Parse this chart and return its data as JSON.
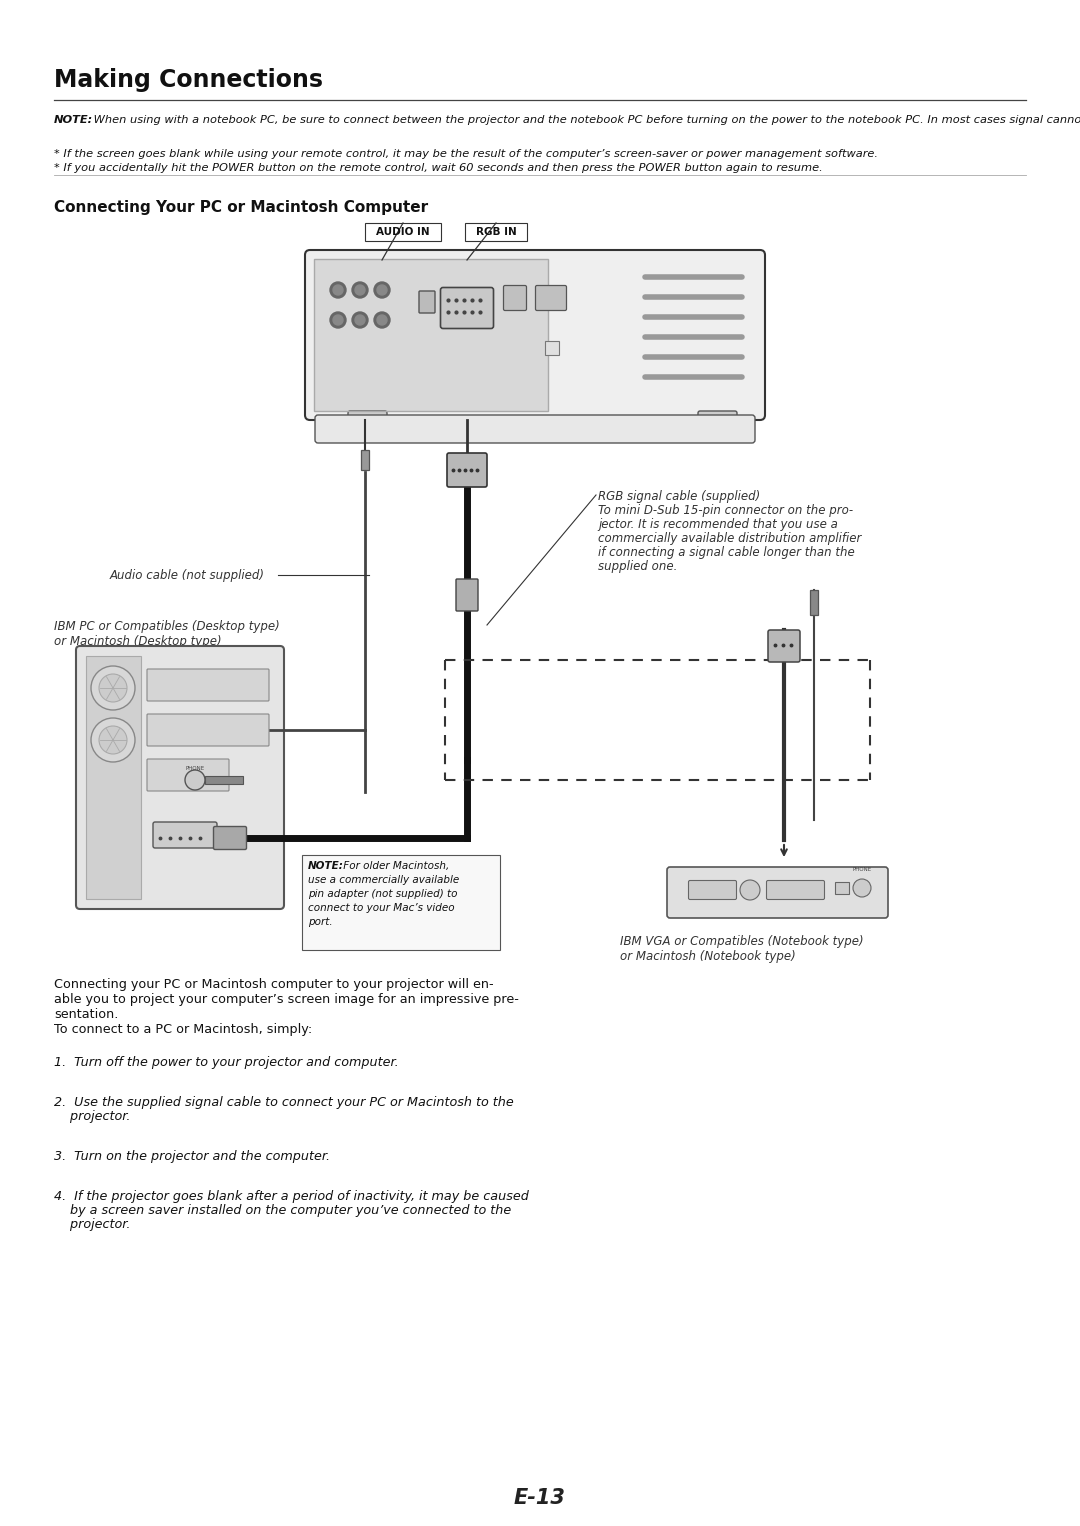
{
  "bg_color": "#ffffff",
  "page_number": "E-13",
  "title": "Making Connections",
  "section_title": "Connecting Your PC or Macintosh Computer",
  "note_bold": "NOTE:",
  "note_text": " When using with a notebook PC, be sure to connect between the projector and the notebook PC before turning on the power to the notebook PC. In most cases signal cannot be output from RGB output unless the notebook PC is turned on after connecting with the projector.",
  "bullet1": "* If the screen goes blank while using your remote control, it may be the result of the computer’s screen-saver or power management software.",
  "bullet2": "* If you accidentally hit the POWER button on the remote control, wait 60 seconds and then press the POWER button again to resume.",
  "body_para1_line1": "Connecting your PC or Macintosh computer to your projector will en-",
  "body_para1_line2": "able you to project your computer’s screen image for an impressive pre-",
  "body_para1_line3": "sentation.",
  "body_para2": "To connect to a PC or Macintosh, simply:",
  "step1": "1.  Turn off the power to your projector and computer.",
  "step2_line1": "2.  Use the supplied signal cable to connect your PC or Macintosh to the",
  "step2_line2": "    projector.",
  "step3": "3.  Turn on the projector and the computer.",
  "step4_line1": "4.  If the projector goes blank after a period of inactivity, it may be caused",
  "step4_line2": "    by a screen saver installed on the computer you’ve connected to the",
  "step4_line3": "    projector.",
  "label_audio_in": "AUDIO IN",
  "label_rgb_in": "RGB IN",
  "label_audio_cable": "Audio cable (not supplied)",
  "label_ibm_pc_line1": "IBM PC or Compatibles (Desktop type)",
  "label_ibm_pc_line2": "or Macintosh (Desktop type)",
  "label_rgb_cable_line1": "RGB signal cable (supplied)",
  "label_rgb_cable_line2": "To mini D-Sub 15-pin connector on the pro-",
  "label_rgb_cable_line3": "jector. It is recommended that you use a",
  "label_rgb_cable_line4": "commercially available distribution amplifier",
  "label_rgb_cable_line5": "if connecting a signal cable longer than the",
  "label_rgb_cable_line6": "supplied one.",
  "label_notebook_line1": "IBM VGA or Compatibles (Notebook type)",
  "label_notebook_line2": "or Macintosh (Notebook type)",
  "note_older_bold": "NOTE:",
  "note_older_line1": " For older Macintosh,",
  "note_older_line2": "use a commercially available",
  "note_older_line3": "pin adapter (not supplied) to",
  "note_older_line4": "connect to your Mac’s video",
  "note_older_line5": "port.",
  "text_color": "#111111",
  "dim_color": "#333333"
}
